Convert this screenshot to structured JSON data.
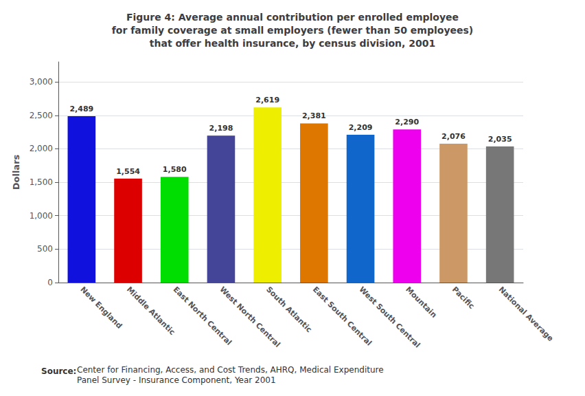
{
  "chart_data": {
    "type": "bar",
    "title": "Figure 4: Average annual contribution per enrolled employee\nfor family coverage at small employers (fewer than 50 employees)\nthat offer health insurance, by census division, 2001",
    "categories": [
      "New England",
      "Middle Atlantic",
      "East North Central",
      "West North Central",
      "South Atlantic",
      "East South Central",
      "West South Central",
      "Mountain",
      "Pacific",
      "National Average"
    ],
    "values": [
      2489,
      1554,
      1580,
      2198,
      2619,
      2381,
      2209,
      2290,
      2076,
      2035
    ],
    "value_labels": [
      "2,489",
      "1,554",
      "1,580",
      "2,198",
      "2,619",
      "2,381",
      "2,209",
      "2,290",
      "2,076",
      "2,035"
    ],
    "data_labels": true,
    "colors": [
      "#1111DD",
      "#DD0000",
      "#00DD00",
      "#444499",
      "#EEEE00",
      "#DD7700",
      "#1166CC",
      "#EE00EE",
      "#CC9966",
      "#777777"
    ],
    "ylabel": "Dollars",
    "ylim": [
      0,
      3300
    ],
    "yticks": [
      0,
      500,
      {
        "value": 1000,
        "label": "1,000"
      },
      {
        "value": 1500,
        "label": "1,500"
      },
      {
        "value": 2000,
        "label": "2,000"
      },
      {
        "value": 2500,
        "label": "2,500"
      },
      {
        "value": 3000,
        "label": "3,000"
      }
    ],
    "grid": true,
    "annotations": [
      "Source:",
      "Center for Financing, Access, and Cost Trends, AHRQ, Medical Expenditure\nPanel Survey - Insurance Component, Year 2001"
    ]
  }
}
